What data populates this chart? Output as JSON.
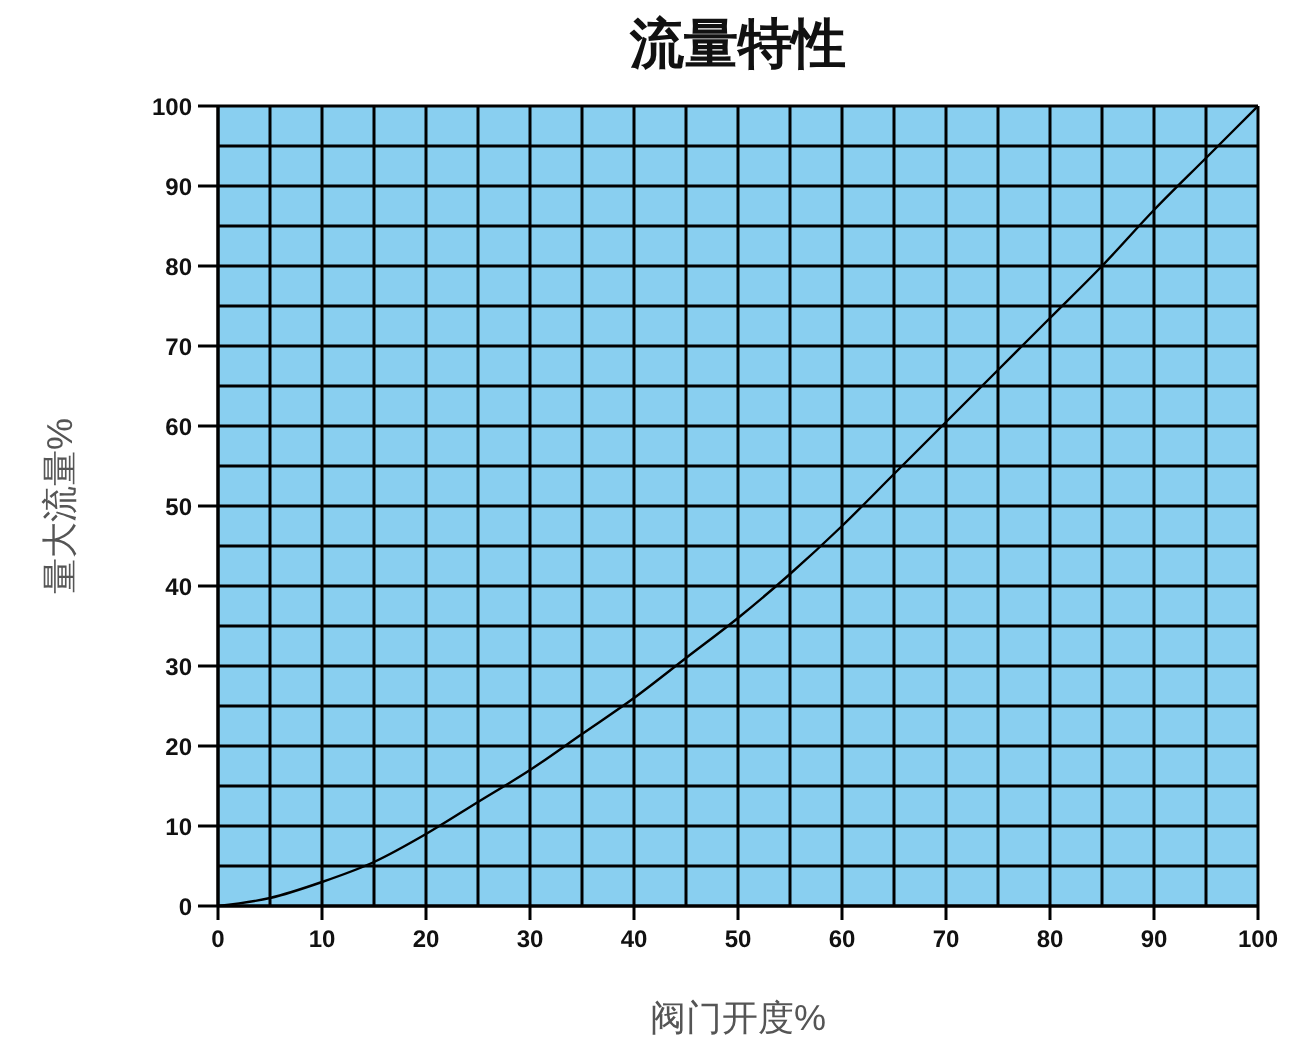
{
  "chart_data": {
    "type": "line",
    "title": "流量特性",
    "xlabel": "阀门开度%",
    "ylabel": "量大流量%",
    "x": [
      0,
      5,
      10,
      15,
      20,
      25,
      30,
      35,
      40,
      45,
      50,
      55,
      60,
      65,
      70,
      75,
      80,
      85,
      90,
      95,
      100
    ],
    "values": [
      0,
      1,
      3,
      5.5,
      9,
      13,
      17,
      21.5,
      26,
      31,
      36,
      41.5,
      47.5,
      54,
      60.5,
      67,
      73.5,
      80,
      87,
      93.5,
      100
    ],
    "color": "#000000",
    "xlim": [
      0,
      100
    ],
    "ylim": [
      0,
      100
    ],
    "xticks": [
      0,
      {
        "value": 5,
        "label": null
      },
      10,
      {
        "value": 15,
        "label": null
      },
      20,
      {
        "value": 25,
        "label": null
      },
      30,
      {
        "value": 35,
        "label": null
      },
      40,
      {
        "value": 45,
        "label": null
      },
      50,
      {
        "value": 55,
        "label": null
      },
      60,
      {
        "value": 65,
        "label": null
      },
      70,
      {
        "value": 75,
        "label": null
      },
      80,
      {
        "value": 85,
        "label": null
      },
      90,
      {
        "value": 95,
        "label": null
      },
      100
    ],
    "yticks": [
      0,
      {
        "value": 5,
        "label": null
      },
      10,
      {
        "value": 15,
        "label": null
      },
      20,
      {
        "value": 25,
        "label": null
      },
      30,
      {
        "value": 35,
        "label": null
      },
      40,
      {
        "value": 45,
        "label": null
      },
      50,
      {
        "value": 55,
        "label": null
      },
      60,
      {
        "value": 65,
        "label": null
      },
      70,
      {
        "value": 75,
        "label": null
      },
      80,
      {
        "value": 85,
        "label": null
      },
      90,
      {
        "value": 95,
        "label": null
      },
      100
    ],
    "grid": true
  }
}
